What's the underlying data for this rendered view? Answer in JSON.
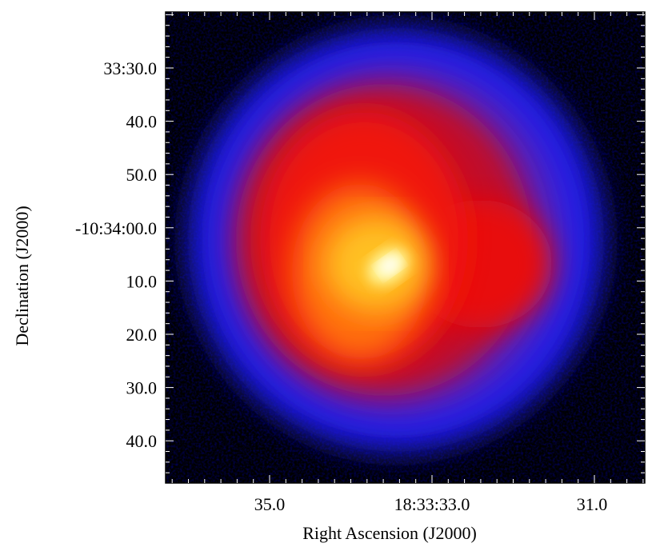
{
  "x_axis": {
    "title": "Right Ascension  (J2000)",
    "tick_labels": [
      "35.0",
      "18:33:33.0",
      "31.0"
    ]
  },
  "y_axis": {
    "title": "Declination  (J2000)",
    "tick_labels": [
      "33:30.0",
      "40.0",
      "50.0",
      "-10:34:00.0",
      "10.0",
      "20.0",
      "30.0",
      "40.0"
    ]
  }
}
